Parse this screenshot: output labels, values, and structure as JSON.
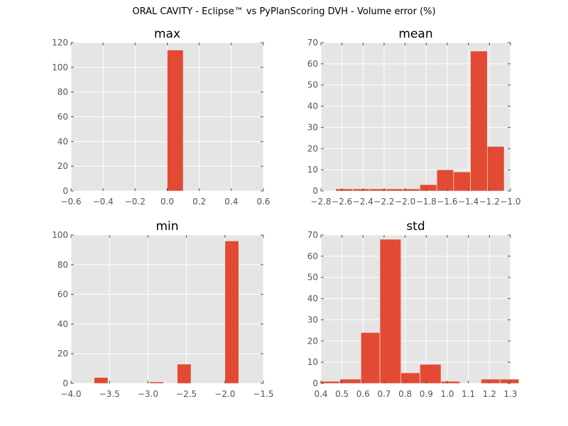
{
  "suptitle": "ORAL CAVITY - Eclipse™ vs PyPlanScoring DVH - Volume error (%)",
  "style": {
    "background": "#e5e5e5",
    "grid": "#ffffff",
    "bar": "#e24a33",
    "bar_edge": "#eeeeee"
  },
  "chart_data": [
    {
      "type": "bar",
      "title": "max",
      "grid": true,
      "xlim": [
        -0.6,
        0.6
      ],
      "ylim": [
        0,
        120
      ],
      "xticks": [
        "−0.6",
        "−0.4",
        "−0.2",
        "0.0",
        "0.2",
        "0.4",
        "0.6"
      ],
      "xtick_values": [
        -0.6,
        -0.4,
        -0.2,
        0.0,
        0.2,
        0.4,
        0.6
      ],
      "yticks": [
        "0",
        "20",
        "40",
        "60",
        "80",
        "100",
        "120"
      ],
      "ytick_values": [
        0,
        20,
        40,
        60,
        80,
        100,
        120
      ],
      "bins": [
        {
          "x0": 0.0,
          "x1": 0.1,
          "count": 114
        }
      ]
    },
    {
      "type": "bar",
      "title": "mean",
      "grid": true,
      "xlim": [
        -2.8,
        -1.0
      ],
      "ylim": [
        0,
        70
      ],
      "xticks": [
        "−2.8",
        "−2.6",
        "−2.4",
        "−2.2",
        "−2.0",
        "−1.8",
        "−1.6",
        "−1.4",
        "−1.2",
        "−1.0"
      ],
      "xtick_values": [
        -2.8,
        -2.6,
        -2.4,
        -2.2,
        -2.0,
        -1.8,
        -1.6,
        -1.4,
        -1.2,
        -1.0
      ],
      "yticks": [
        "0",
        "10",
        "20",
        "30",
        "40",
        "50",
        "60",
        "70"
      ],
      "ytick_values": [
        0,
        10,
        20,
        30,
        40,
        50,
        60,
        70
      ],
      "bins": [
        {
          "x0": -2.66,
          "x1": -2.5,
          "count": 1
        },
        {
          "x0": -2.5,
          "x1": -2.34,
          "count": 1
        },
        {
          "x0": -2.34,
          "x1": -2.18,
          "count": 1
        },
        {
          "x0": -2.18,
          "x1": -2.02,
          "count": 1
        },
        {
          "x0": -2.02,
          "x1": -1.86,
          "count": 1
        },
        {
          "x0": -1.86,
          "x1": -1.7,
          "count": 3
        },
        {
          "x0": -1.7,
          "x1": -1.54,
          "count": 10
        },
        {
          "x0": -1.54,
          "x1": -1.38,
          "count": 9
        },
        {
          "x0": -1.38,
          "x1": -1.22,
          "count": 66
        },
        {
          "x0": -1.22,
          "x1": -1.06,
          "count": 21
        }
      ]
    },
    {
      "type": "bar",
      "title": "min",
      "grid": true,
      "xlim": [
        -4.0,
        -1.5
      ],
      "ylim": [
        0,
        100
      ],
      "xticks": [
        "−4.0",
        "−3.5",
        "−3.0",
        "−2.5",
        "−2.0",
        "−1.5"
      ],
      "xtick_values": [
        -4.0,
        -3.5,
        -3.0,
        -2.5,
        -2.0,
        -1.5
      ],
      "yticks": [
        "0",
        "20",
        "40",
        "60",
        "80",
        "100"
      ],
      "ytick_values": [
        0,
        20,
        40,
        60,
        80,
        100
      ],
      "bins": [
        {
          "x0": -3.7,
          "x1": -3.52,
          "count": 4
        },
        {
          "x0": -2.98,
          "x1": -2.8,
          "count": 1
        },
        {
          "x0": -2.62,
          "x1": -2.44,
          "count": 13
        },
        {
          "x0": -2.0,
          "x1": -1.82,
          "count": 96
        }
      ]
    },
    {
      "type": "bar",
      "title": "std",
      "grid": true,
      "xlim": [
        0.4,
        1.3
      ],
      "ylim": [
        0,
        70
      ],
      "xticks": [
        "0.4",
        "0.5",
        "0.6",
        "0.7",
        "0.8",
        "0.9",
        "1.0",
        "1.1",
        "1.2",
        "1.3"
      ],
      "xtick_values": [
        0.4,
        0.5,
        0.6,
        0.7,
        0.8,
        0.9,
        1.0,
        1.1,
        1.2,
        1.3
      ],
      "yticks": [
        "0",
        "10",
        "20",
        "30",
        "40",
        "50",
        "60",
        "70"
      ],
      "ytick_values": [
        0,
        10,
        20,
        30,
        40,
        50,
        60,
        70
      ],
      "bins": [
        {
          "x0": 0.4,
          "x1": 0.49,
          "count": 1
        },
        {
          "x0": 0.49,
          "x1": 0.59,
          "count": 2
        },
        {
          "x0": 0.59,
          "x1": 0.68,
          "count": 24
        },
        {
          "x0": 0.68,
          "x1": 0.78,
          "count": 68
        },
        {
          "x0": 0.78,
          "x1": 0.87,
          "count": 5
        },
        {
          "x0": 0.87,
          "x1": 0.97,
          "count": 9
        },
        {
          "x0": 0.97,
          "x1": 1.06,
          "count": 1
        },
        {
          "x0": 1.06,
          "x1": 1.16,
          "count": 0
        },
        {
          "x0": 1.16,
          "x1": 1.25,
          "count": 2
        },
        {
          "x0": 1.25,
          "x1": 1.34,
          "count": 2
        }
      ]
    }
  ]
}
